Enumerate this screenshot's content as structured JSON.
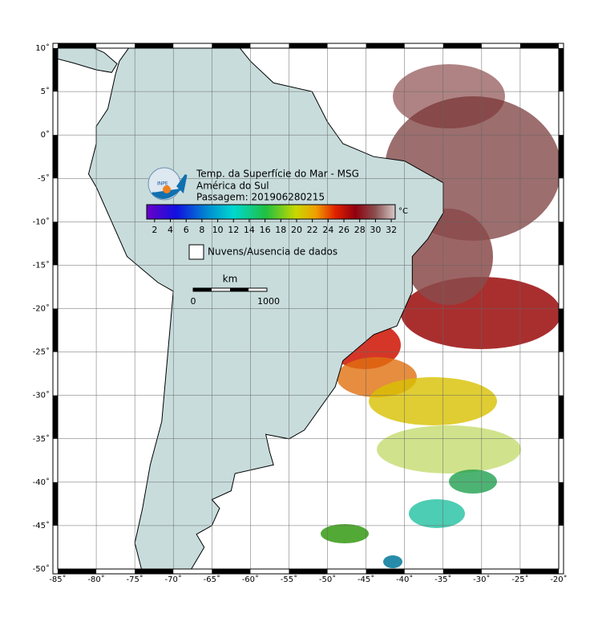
{
  "map": {
    "title_lines": [
      "Temp. da Superfície do Mar - MSG",
      "América do Sul",
      "Passagem: 201906280215"
    ],
    "logo_text": "INPE",
    "colorbar": {
      "range": [
        1,
        32.5
      ],
      "ticks": [
        2,
        4,
        6,
        8,
        10,
        12,
        14,
        16,
        18,
        20,
        22,
        24,
        26,
        28,
        30,
        32
      ],
      "unit": "°C"
    },
    "legend": "Nuvens/Ausencia de dados",
    "scale": {
      "unit": "km",
      "start": "0",
      "end": "1000"
    },
    "lonlim": [
      -85,
      -20
    ],
    "latlim": [
      -50,
      10
    ],
    "lon_ticks": [
      {
        "value": -85,
        "label": "-85˚"
      },
      {
        "value": -80,
        "label": "-80˚"
      },
      {
        "value": -75,
        "label": "-75˚"
      },
      {
        "value": -70,
        "label": "-70˚"
      },
      {
        "value": -65,
        "label": "-65˚"
      },
      {
        "value": -60,
        "label": "-60˚"
      },
      {
        "value": -55,
        "label": "-55˚"
      },
      {
        "value": -50,
        "label": "-50˚"
      },
      {
        "value": -45,
        "label": "-45˚"
      },
      {
        "value": -40,
        "label": "-40˚"
      },
      {
        "value": -35,
        "label": "-35˚"
      },
      {
        "value": -30,
        "label": "-30˚"
      },
      {
        "value": -25,
        "label": "-25˚"
      },
      {
        "value": -20,
        "label": "-20˚"
      }
    ],
    "lat_ticks": [
      {
        "value": 10,
        "label": "10˚"
      },
      {
        "value": 5,
        "label": "5˚"
      },
      {
        "value": 0,
        "label": "0˚"
      },
      {
        "value": -5,
        "label": "-5˚"
      },
      {
        "value": -10,
        "label": "-10˚"
      },
      {
        "value": -15,
        "label": "-15˚"
      },
      {
        "value": -20,
        "label": "-20˚"
      },
      {
        "value": -25,
        "label": "-25˚"
      },
      {
        "value": -30,
        "label": "-30˚"
      },
      {
        "value": -35,
        "label": "-35˚"
      },
      {
        "value": -40,
        "label": "-40˚"
      },
      {
        "value": -45,
        "label": "-45˚"
      },
      {
        "value": -50,
        "label": "-50˚"
      }
    ]
  }
}
